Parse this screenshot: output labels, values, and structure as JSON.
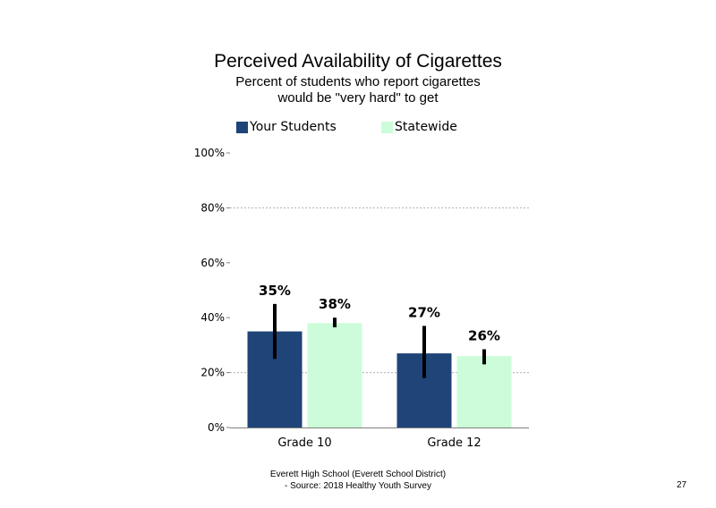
{
  "chart_data": {
    "type": "bar",
    "title": "Perceived Availability of Cigarettes",
    "subtitle_lines": [
      "Percent of students who report cigarettes",
      "would be \"very hard\" to get"
    ],
    "categories": [
      "Grade 10",
      "Grade 12"
    ],
    "series": [
      {
        "name": "Your Students",
        "color": "#1f4478",
        "values": [
          35,
          27
        ],
        "labels": [
          "35%",
          "27%"
        ],
        "error_low": [
          25,
          18
        ],
        "error_high": [
          45,
          37
        ]
      },
      {
        "name": "Statewide",
        "color": "#ccfcd9",
        "values": [
          38,
          26
        ],
        "labels": [
          "38%",
          "26%"
        ],
        "error_low": [
          36.5,
          23
        ],
        "error_high": [
          40,
          28.5
        ]
      }
    ],
    "ylim": [
      0,
      100
    ],
    "yticks": [
      0,
      20,
      40,
      60,
      80,
      100
    ],
    "ytick_labels": [
      "0%",
      "20%",
      "40%",
      "60%",
      "80%",
      "100%"
    ],
    "gridlines": [
      20,
      80
    ],
    "legend_position": "top"
  },
  "footer": {
    "line1": "Everett High School (Everett School District)",
    "line2": "- Source: 2018 Healthy Youth Survey"
  },
  "page_number": "27"
}
